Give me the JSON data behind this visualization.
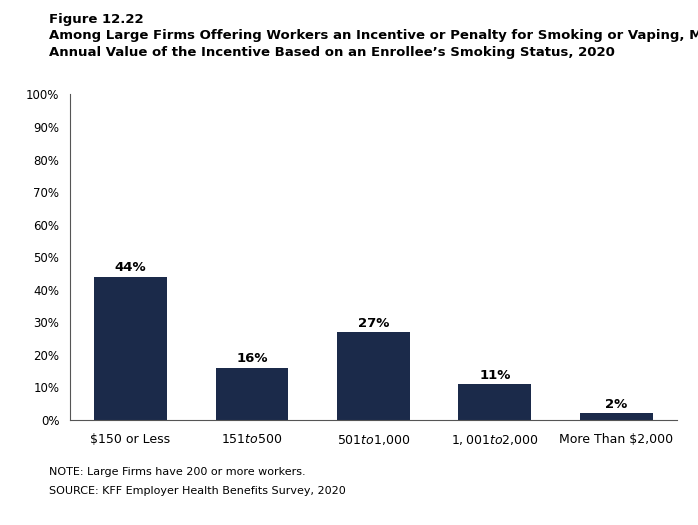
{
  "figure_label": "Figure 12.22",
  "title_line1": "Among Large Firms Offering Workers an Incentive or Penalty for Smoking or Vaping, Maximum",
  "title_line2": "Annual Value of the Incentive Based on an Enrollee’s Smoking Status, 2020",
  "categories": [
    "$150 or Less",
    "$151 to $500",
    "$501 to $1,000",
    "$1,001 to $2,000",
    "More Than $2,000"
  ],
  "values": [
    44,
    16,
    27,
    11,
    2
  ],
  "bar_color": "#1B2A4A",
  "ylim": [
    0,
    100
  ],
  "yticks": [
    0,
    10,
    20,
    30,
    40,
    50,
    60,
    70,
    80,
    90,
    100
  ],
  "ytick_labels": [
    "0%",
    "10%",
    "20%",
    "30%",
    "40%",
    "50%",
    "60%",
    "70%",
    "80%",
    "90%",
    "100%"
  ],
  "note": "NOTE: Large Firms have 200 or more workers.",
  "source": "SOURCE: KFF Employer Health Benefits Survey, 2020",
  "background_color": "#ffffff"
}
